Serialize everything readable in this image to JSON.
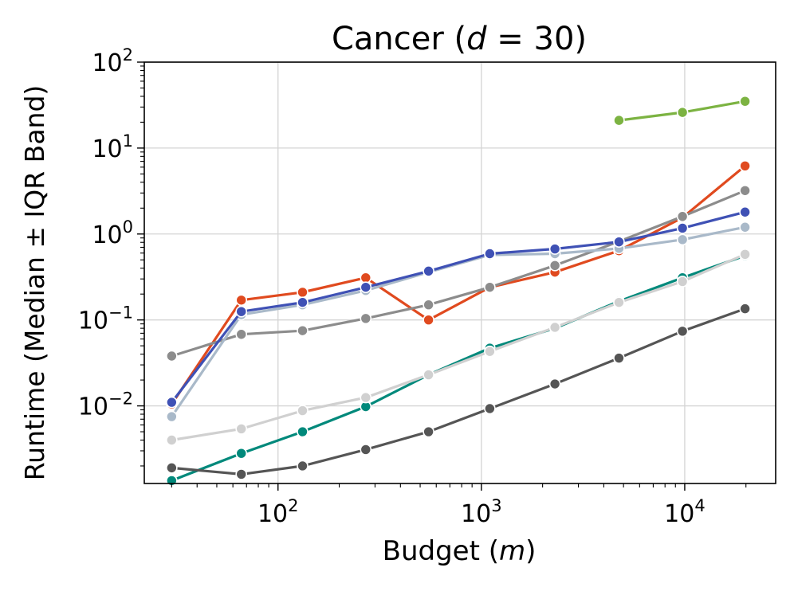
{
  "chart_data": {
    "type": "line",
    "title_prefix": "Cancer (",
    "title_var": "d",
    "title_suffix": " = 30)",
    "xlabel_prefix": "Budget (",
    "xlabel_var": "m",
    "xlabel_suffix": ")",
    "ylabel": "Runtime (Median ± IQR Band)",
    "xscale": "log",
    "yscale": "log",
    "xlim": [
      22,
      28000
    ],
    "ylim": [
      0.00125,
      100
    ],
    "x_ticks": [
      {
        "value": 100,
        "base": "10",
        "exp": "2"
      },
      {
        "value": 1000,
        "base": "10",
        "exp": "3"
      },
      {
        "value": 10000,
        "base": "10",
        "exp": "4"
      }
    ],
    "y_ticks": [
      {
        "value": 0.01,
        "base": "10",
        "exp": "−2"
      },
      {
        "value": 0.1,
        "base": "10",
        "exp": "−1"
      },
      {
        "value": 1,
        "base": "10",
        "exp": "0"
      },
      {
        "value": 10,
        "base": "10",
        "exp": "1"
      },
      {
        "value": 100,
        "base": "10",
        "exp": "2"
      }
    ],
    "grid": true,
    "legend": "none",
    "series": [
      {
        "name": "green",
        "color": "#7cb342",
        "x": [
          4750,
          9750,
          19800
        ],
        "y": [
          21,
          26,
          35
        ]
      },
      {
        "name": "orange-red",
        "color": "#e04a1f",
        "x": [
          30,
          66,
          132,
          270,
          550,
          1100,
          2300,
          4750,
          9750,
          19800
        ],
        "y": [
          0.0105,
          0.17,
          0.21,
          0.31,
          0.1,
          0.24,
          0.36,
          0.64,
          1.55,
          6.2
        ]
      },
      {
        "name": "gray",
        "color": "#8c8c8c",
        "x": [
          30,
          66,
          132,
          270,
          550,
          1100,
          2300,
          4750,
          9750,
          19800
        ],
        "y": [
          0.038,
          0.068,
          0.075,
          0.104,
          0.15,
          0.24,
          0.43,
          0.82,
          1.6,
          3.2
        ]
      },
      {
        "name": "light-steel",
        "color": "#a9b9c9",
        "x": [
          30,
          66,
          132,
          270,
          550,
          1100,
          2300,
          4750,
          9750,
          19800
        ],
        "y": [
          0.0075,
          0.115,
          0.15,
          0.22,
          0.36,
          0.57,
          0.59,
          0.68,
          0.86,
          1.2
        ]
      },
      {
        "name": "indigo",
        "color": "#3f51b5",
        "x": [
          30,
          66,
          132,
          270,
          550,
          1100,
          2300,
          4750,
          9750,
          19800
        ],
        "y": [
          0.011,
          0.125,
          0.16,
          0.24,
          0.37,
          0.59,
          0.67,
          0.81,
          1.17,
          1.8
        ]
      },
      {
        "name": "teal",
        "color": "#00897b",
        "x": [
          30,
          66,
          132,
          270,
          550,
          1100,
          2300,
          4750,
          9750,
          19800
        ],
        "y": [
          0.00135,
          0.0028,
          0.005,
          0.0098,
          0.023,
          0.047,
          0.08,
          0.165,
          0.31,
          0.56
        ]
      },
      {
        "name": "light-gray",
        "color": "#d0d0d0",
        "x": [
          30,
          66,
          132,
          270,
          550,
          1100,
          2300,
          4750,
          9750,
          19800
        ],
        "y": [
          0.004,
          0.0054,
          0.0088,
          0.0125,
          0.023,
          0.043,
          0.082,
          0.16,
          0.28,
          0.58
        ]
      },
      {
        "name": "dark-gray",
        "color": "#555555",
        "x": [
          30,
          66,
          132,
          270,
          550,
          1100,
          2300,
          4750,
          9750,
          19800
        ],
        "y": [
          0.0019,
          0.0016,
          0.002,
          0.0031,
          0.005,
          0.0093,
          0.018,
          0.036,
          0.074,
          0.135
        ]
      }
    ]
  }
}
